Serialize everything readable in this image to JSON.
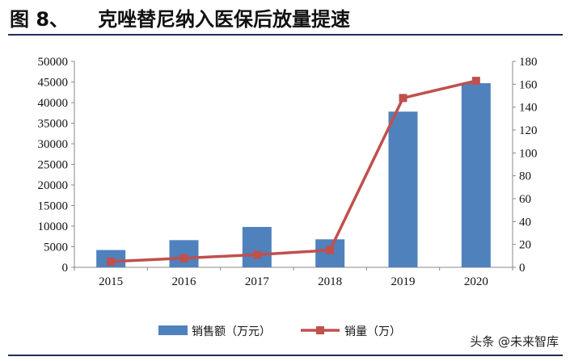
{
  "figure": {
    "number": "图 8、",
    "title": "克唑替尼纳入医保后放量提速"
  },
  "watermark": "头条 @未来智库",
  "colors": {
    "bar": "#4f81bd",
    "line": "#c0504d",
    "rule": "#1f2f5a"
  },
  "chart_data": {
    "type": "bar",
    "categories": [
      "2015",
      "2016",
      "2017",
      "2018",
      "2019",
      "2020"
    ],
    "series": [
      {
        "name": "销售额（万元）",
        "kind": "bar",
        "axis": "left",
        "values": [
          4200,
          6600,
          9800,
          6800,
          37800,
          44700
        ]
      },
      {
        "name": "销量（万）",
        "kind": "line",
        "axis": "right",
        "values": [
          5,
          8,
          11,
          15,
          148,
          163
        ]
      }
    ],
    "ylim_left": [
      0,
      50000
    ],
    "yticks_left": [
      "0",
      "5000",
      "10000",
      "15000",
      "20000",
      "25000",
      "30000",
      "35000",
      "40000",
      "45000",
      "50000"
    ],
    "ylim_right": [
      0,
      180
    ],
    "yticks_right": [
      "0",
      "20",
      "40",
      "60",
      "80",
      "100",
      "120",
      "140",
      "160",
      "180"
    ],
    "grid": false,
    "legend_position": "bottom"
  }
}
